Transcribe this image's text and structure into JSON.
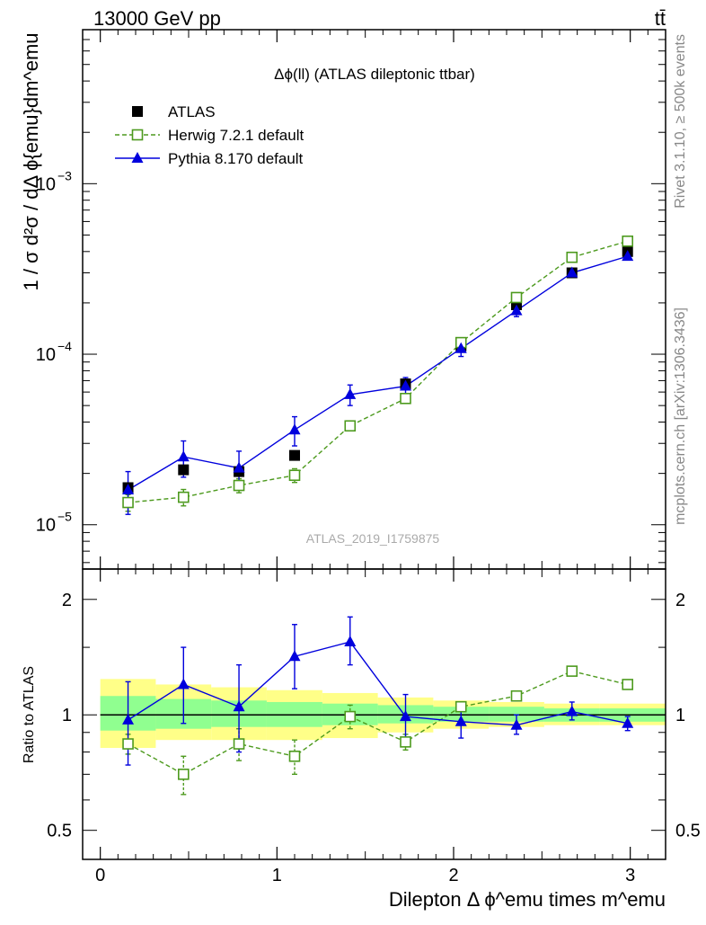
{
  "header": {
    "left": "13000 GeV pp",
    "right": "tt̄"
  },
  "side": {
    "top": "Rivet 3.1.10, ≥ 500k events",
    "bottom": "mcplots.cern.ch [arXiv:1306.3436]"
  },
  "chart_data": [
    {
      "type": "scatter",
      "panel": "main",
      "title": "Δϕ(ll) (ATLAS dileptonic ttbar)",
      "watermark": "ATLAS_2019_I1759875",
      "ylabel": "1 / σ  d²σ / dΔ ϕ{emu}dm^emu",
      "yscale": "log",
      "ylim": [
        5.5e-06,
        0.008
      ],
      "xlim": [
        -0.1,
        3.2
      ],
      "x_ticks": [
        0,
        1,
        2,
        3
      ],
      "y_tick_labels": [
        {
          "base": "10",
          "exp": "−5",
          "value": 1e-05
        },
        {
          "base": "10",
          "exp": "−4",
          "value": 0.0001
        },
        {
          "base": "10",
          "exp": "−3",
          "value": 0.001
        }
      ],
      "legend_position": "top-left",
      "x": [
        0.157,
        0.471,
        0.785,
        1.1,
        1.414,
        1.728,
        2.042,
        2.356,
        2.67,
        2.985
      ],
      "series": [
        {
          "name": "ATLAS",
          "style": "data",
          "color": "#000000",
          "values": [
            1.65e-05,
            2.1e-05,
            2.05e-05,
            2.55e-05,
            3.8e-05,
            6.7e-05,
            0.000112,
            0.000195,
            0.0003,
            0.0004
          ]
        },
        {
          "name": "Herwig 7.2.1 default",
          "style": "dashed-open-square",
          "color": "#4d9a1e",
          "values": [
            1.35e-05,
            1.45e-05,
            1.7e-05,
            1.95e-05,
            3.8e-05,
            5.5e-05,
            0.000117,
            0.000215,
            0.00037,
            0.00046
          ],
          "err_up": [
            1.5e-06,
            1.6e-06,
            1.6e-06,
            1.8e-06,
            2e-06,
            3e-06,
            5e-06,
            8e-06,
            1e-05,
            1.2e-05
          ],
          "err_down": [
            1.5e-06,
            1.6e-06,
            1.6e-06,
            1.8e-06,
            2e-06,
            3e-06,
            5e-06,
            8e-06,
            1e-05,
            1.2e-05
          ]
        },
        {
          "name": "Pythia 8.170 default",
          "style": "solid-triangle",
          "color": "#0000dd",
          "values": [
            1.6e-05,
            2.5e-05,
            2.15e-05,
            3.6e-05,
            5.8e-05,
            6.5e-05,
            0.000108,
            0.00018,
            0.0003,
            0.000375
          ],
          "err_up": [
            4.5e-06,
            6e-06,
            5.5e-06,
            7e-06,
            8e-06,
            8e-06,
            1.1e-05,
            1.4e-05,
            1.6e-05,
            1.6e-05
          ],
          "err_down": [
            4.5e-06,
            6e-06,
            5.5e-06,
            7e-06,
            8e-06,
            8e-06,
            1.1e-05,
            1.4e-05,
            1.6e-05,
            1.6e-05
          ]
        }
      ]
    },
    {
      "type": "scatter",
      "panel": "ratio",
      "ylabel": "Ratio to ATLAS",
      "xlabel": "Dilepton Δ ϕ^emu times m^emu",
      "yscale": "log",
      "ylim": [
        0.42,
        2.4
      ],
      "xlim": [
        -0.1,
        3.2
      ],
      "x_ticks": [
        0,
        1,
        2,
        3
      ],
      "y_tick_labels": [
        {
          "label": "0.5",
          "value": 0.5
        },
        {
          "label": "1",
          "value": 1
        },
        {
          "label": "2",
          "value": 2
        }
      ],
      "uncertainty_bands": {
        "bin_edges": [
          0,
          0.314,
          0.628,
          0.942,
          1.257,
          1.571,
          1.885,
          2.199,
          2.513,
          2.827,
          3.2
        ],
        "outer_color": "#ffff88",
        "inner_color": "#90ff90",
        "outer_lo": [
          0.82,
          0.86,
          0.86,
          0.86,
          0.87,
          0.9,
          0.92,
          0.93,
          0.94,
          0.94
        ],
        "outer_hi": [
          1.24,
          1.2,
          1.18,
          1.16,
          1.14,
          1.11,
          1.09,
          1.08,
          1.07,
          1.07
        ],
        "inner_lo": [
          0.91,
          0.92,
          0.93,
          0.93,
          0.94,
          0.95,
          0.96,
          0.96,
          0.96,
          0.96
        ],
        "inner_hi": [
          1.12,
          1.1,
          1.09,
          1.08,
          1.07,
          1.06,
          1.05,
          1.05,
          1.04,
          1.04
        ]
      },
      "x": [
        0.157,
        0.471,
        0.785,
        1.1,
        1.414,
        1.728,
        2.042,
        2.356,
        2.67,
        2.985
      ],
      "series": [
        {
          "name": "Herwig 7.2.1 default",
          "style": "dashed-open-square",
          "color": "#4d9a1e",
          "values": [
            0.84,
            0.7,
            0.84,
            0.78,
            0.99,
            0.85,
            1.05,
            1.12,
            1.3,
            1.2
          ],
          "err_up": [
            0.05,
            0.08,
            0.08,
            0.08,
            0.07,
            0.04,
            0.03,
            0.03,
            0.03,
            0.03
          ],
          "err_down": [
            0.05,
            0.08,
            0.08,
            0.08,
            0.07,
            0.04,
            0.03,
            0.03,
            0.03,
            0.03
          ]
        },
        {
          "name": "Pythia 8.170 default",
          "style": "solid-triangle",
          "color": "#0000dd",
          "values": [
            0.97,
            1.2,
            1.05,
            1.42,
            1.55,
            0.99,
            0.96,
            0.94,
            1.02,
            0.95
          ],
          "err_up": [
            0.25,
            0.3,
            0.3,
            0.3,
            0.25,
            0.14,
            0.1,
            0.06,
            0.06,
            0.04
          ],
          "err_down": [
            0.23,
            0.25,
            0.25,
            0.25,
            0.2,
            0.12,
            0.09,
            0.05,
            0.05,
            0.04
          ]
        }
      ]
    }
  ]
}
